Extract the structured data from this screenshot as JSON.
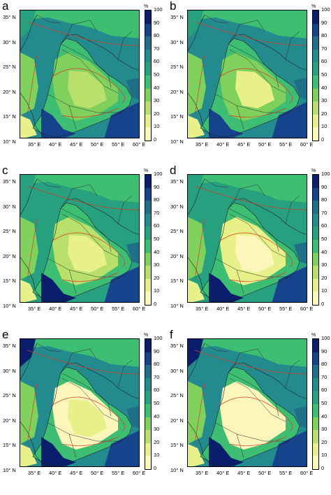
{
  "unit": "%",
  "colorbar": {
    "ticks": [
      "100",
      "90",
      "80",
      "70",
      "60",
      "50",
      "40",
      "30",
      "20",
      "10",
      "0"
    ],
    "colors": [
      "#0b1e6e",
      "#16438c",
      "#1f6f8b",
      "#238a8d",
      "#26a07e",
      "#3dbe72",
      "#7fd05c",
      "#b8e06a",
      "#e8f08a",
      "#fcf6bb"
    ]
  },
  "axis": {
    "y_labels": [
      "35° N",
      "30° N",
      "25° N",
      "20° N",
      "15° N",
      "10° N"
    ],
    "x_labels": [
      "35° E",
      "40° E",
      "45° E",
      "50° E",
      "55° E",
      "60° E"
    ]
  },
  "panels": [
    {
      "letter": "a"
    },
    {
      "letter": "b"
    },
    {
      "letter": "c"
    },
    {
      "letter": "d"
    },
    {
      "letter": "e"
    },
    {
      "letter": "f"
    }
  ]
}
